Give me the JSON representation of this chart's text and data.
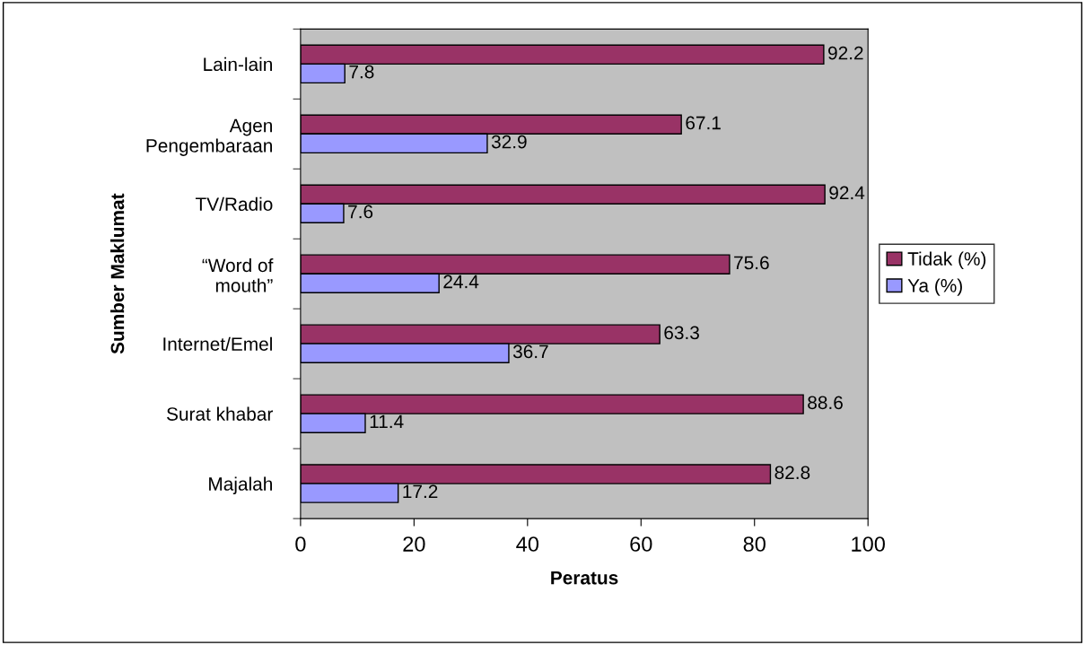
{
  "chart_data": {
    "type": "bar",
    "orientation": "horizontal",
    "xlabel": "Peratus",
    "ylabel": "Sumber Maklumat",
    "categories": [
      "Lain-lain",
      "Agen\nPengembaraan",
      "TV/Radio",
      "“Word of\nmouth”",
      "Internet/Emel",
      "Surat khabar",
      "Majalah"
    ],
    "series": [
      {
        "name": "Tidak (%)",
        "color": "#993366",
        "values": [
          92.2,
          67.1,
          92.4,
          75.6,
          63.3,
          88.6,
          82.8
        ]
      },
      {
        "name": "Ya (%)",
        "color": "#9999ff",
        "values": [
          7.8,
          32.9,
          7.6,
          24.4,
          36.7,
          11.4,
          17.2
        ]
      }
    ],
    "xlim": [
      0,
      100
    ],
    "xticks": [
      0,
      20,
      40,
      60,
      80,
      100
    ],
    "data_labels": true,
    "grid": false,
    "legend": "right"
  }
}
